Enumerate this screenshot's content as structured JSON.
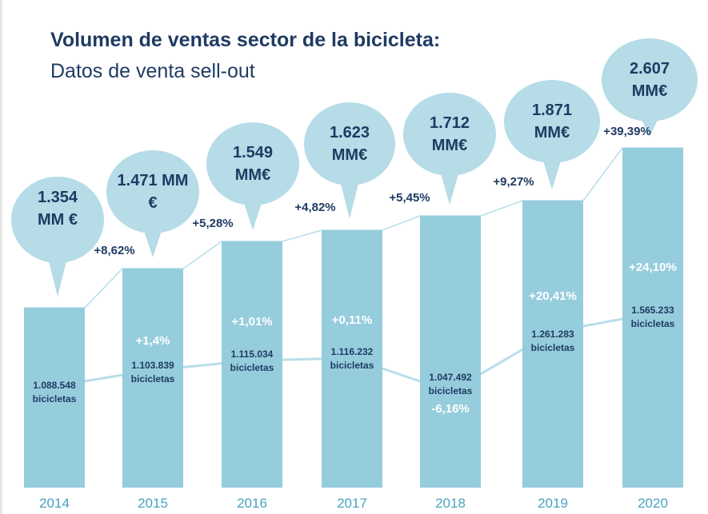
{
  "chart_data": {
    "type": "bar",
    "title": "Volumen de ventas sector de la bicicleta:",
    "subtitle": "Datos de venta sell-out",
    "categories": [
      "2014",
      "2015",
      "2016",
      "2017",
      "2018",
      "2019",
      "2020"
    ],
    "series": [
      {
        "values": [
          1354,
          1471,
          1549,
          1623,
          1712,
          1871,
          2607
        ],
        "labels": [
          "1.354 MM €",
          "1.471 MM €",
          "1.549 MM€",
          "1.623 MM€",
          "1.712 MM€",
          "1.871 MM€",
          "2.607 MM€"
        ],
        "growth": [
          "",
          "+8,62%",
          "+5,28%",
          "+4,82%",
          "+5,45%",
          "+9,27%",
          "+39,39%"
        ]
      },
      {
        "values": [
          1088548,
          1103839,
          1115034,
          1116232,
          1047492,
          1261283,
          1565233
        ],
        "labels": [
          "1.088.548",
          "1.103.839",
          "1.115.034",
          "1.116.232",
          "1.047.492",
          "1.261.283",
          "1.565.233"
        ],
        "unit": "bicicletas",
        "growth": [
          "",
          "+1,4%",
          "+1,01%",
          "+0,11%",
          "-6,16%",
          "+20,41%",
          "+24,10%"
        ]
      }
    ],
    "colors": {
      "bar": "#96cddd",
      "bubble": "#b5dce7",
      "line": "#b8dde8",
      "text": "#1f3b63",
      "year": "#4aa3c0"
    },
    "grid": false
  }
}
